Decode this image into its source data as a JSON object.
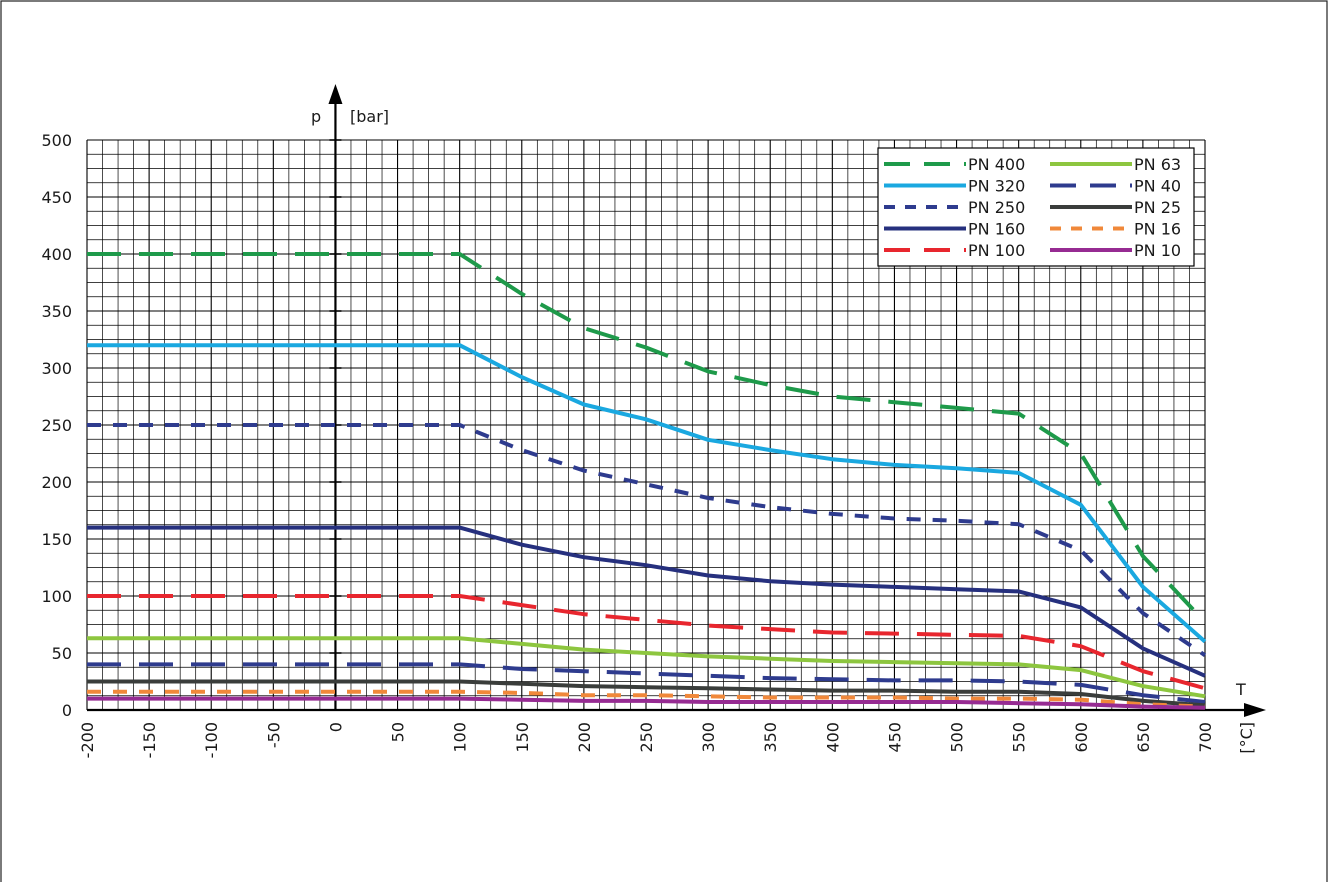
{
  "chart_data": {
    "type": "line",
    "ylabel_symbol": "p",
    "ylabel_unit": "[bar]",
    "xlabel_symbol": "T",
    "xlabel_unit": "[°C]",
    "xlim": [
      -200,
      700
    ],
    "ylim": [
      0,
      500
    ],
    "x_ticks": [
      "-200",
      "-150",
      "-100",
      "-50",
      "0",
      "50",
      "100",
      "150",
      "200",
      "250",
      "300",
      "350",
      "400",
      "450",
      "500",
      "550",
      "600",
      "650",
      "700"
    ],
    "y_ticks": [
      "0",
      "50",
      "100",
      "150",
      "200",
      "250",
      "300",
      "350",
      "400",
      "450",
      "500"
    ],
    "grid": true,
    "legend_position": "top-right",
    "x": [
      -200,
      100,
      150,
      200,
      250,
      300,
      350,
      400,
      450,
      500,
      550,
      600,
      650,
      700
    ],
    "series": [
      {
        "name": "PN 400",
        "color": "#1e9a4a",
        "dash": "long",
        "values": [
          400,
          400,
          365,
          335,
          318,
          297,
          285,
          275,
          270,
          265,
          260,
          225,
          135,
          77
        ]
      },
      {
        "name": "PN 320",
        "color": "#1aa8e0",
        "dash": "solid",
        "values": [
          320,
          320,
          292,
          268,
          255,
          237,
          228,
          220,
          215,
          212,
          208,
          180,
          108,
          60
        ]
      },
      {
        "name": "PN 250",
        "color": "#2e3b8e",
        "dash": "short",
        "values": [
          250,
          250,
          228,
          210,
          198,
          186,
          178,
          172,
          168,
          166,
          163,
          140,
          85,
          48
        ]
      },
      {
        "name": "PN 160",
        "color": "#26307e",
        "dash": "solid",
        "values": [
          160,
          160,
          145,
          134,
          127,
          118,
          113,
          110,
          108,
          106,
          104,
          90,
          54,
          30
        ]
      },
      {
        "name": "PN 100",
        "color": "#e8262e",
        "dash": "long",
        "values": [
          100,
          100,
          92,
          84,
          79,
          74,
          71,
          68,
          67,
          66,
          65,
          56,
          34,
          19
        ]
      },
      {
        "name": "PN 63",
        "color": "#8dc63f",
        "dash": "solid",
        "values": [
          63,
          63,
          58,
          53,
          50,
          47,
          45,
          43,
          42,
          41,
          40,
          35,
          21,
          12
        ]
      },
      {
        "name": "PN 40",
        "color": "#2e3b8e",
        "dash": "long",
        "values": [
          40,
          40,
          36,
          34,
          32,
          30,
          28,
          27,
          26,
          26,
          25,
          22,
          13,
          7
        ]
      },
      {
        "name": "PN 25",
        "color": "#3a3d3b",
        "dash": "solid",
        "values": [
          25,
          25,
          23,
          21,
          20,
          19,
          18,
          17,
          17,
          16,
          16,
          14,
          8,
          4
        ]
      },
      {
        "name": "PN 16",
        "color": "#f0883a",
        "dash": "short",
        "values": [
          16,
          16,
          15,
          13,
          13,
          12,
          11,
          11,
          11,
          10,
          10,
          9,
          5,
          3
        ]
      },
      {
        "name": "PN 10",
        "color": "#962b92",
        "dash": "solid",
        "values": [
          10,
          10,
          9,
          8,
          8,
          7,
          7,
          7,
          7,
          7,
          6,
          5,
          3,
          2
        ]
      }
    ]
  }
}
